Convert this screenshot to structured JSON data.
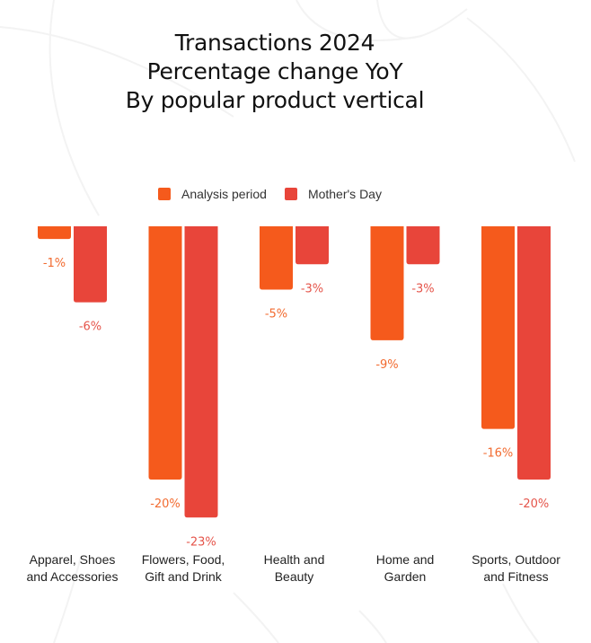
{
  "chart_data": {
    "type": "bar",
    "title_lines": [
      "Transactions 2024",
      "Percentage change YoY",
      "By popular product vertical"
    ],
    "xlabel": "",
    "ylabel": "",
    "categories": [
      [
        "Apparel, Shoes",
        "and Accessories"
      ],
      [
        "Flowers, Food,",
        "Gift and Drink"
      ],
      [
        "Health and",
        "Beauty"
      ],
      [
        "Home and",
        "Garden"
      ],
      [
        "Sports, Outdoor",
        "and Fitness"
      ]
    ],
    "series": [
      {
        "name": "Analysis period",
        "color": "#F55A1C",
        "label_color": "#F26B30",
        "values": [
          -1,
          -20,
          -5,
          -9,
          -16
        ],
        "labels": [
          "-1%",
          "-20%",
          "-5%",
          "-9%",
          "-16%"
        ]
      },
      {
        "name": "Mother's Day",
        "color": "#E8453A",
        "label_color": "#E5544A",
        "values": [
          -6,
          -23,
          -3,
          -3,
          -20
        ],
        "labels": [
          "-6%",
          "-23%",
          "-3%",
          "-3%",
          "-20%"
        ]
      }
    ],
    "ylim": [
      -23,
      0
    ],
    "grid": false,
    "legend_position": "top-center"
  }
}
